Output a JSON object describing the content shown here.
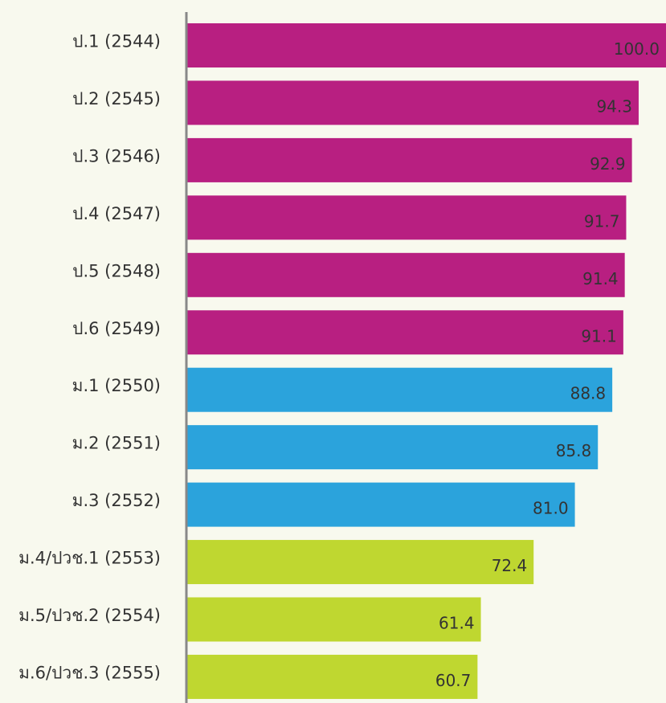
{
  "chart_data": {
    "type": "bar",
    "orientation": "horizontal",
    "categories": [
      "ป.1 (2544)",
      "ป.2 (2545)",
      "ป.3 (2546)",
      "ป.4 (2547)",
      "ป.5 (2548)",
      "ป.6 (2549)",
      "ม.1 (2550)",
      "ม.2 (2551)",
      "ม.3 (2552)",
      "ม.4/ปวช.1 (2553)",
      "ม.5/ปวช.2 (2554)",
      "ม.6/ปวช.3 (2555)"
    ],
    "values": [
      100,
      94.3,
      92.9,
      91.7,
      91.4,
      91.1,
      88.8,
      85.8,
      81,
      72.4,
      61.4,
      60.7
    ],
    "value_labels": [
      "100.0",
      "94.3",
      "92.9",
      "91.7",
      "91.4",
      "91.1",
      "88.8",
      "85.8",
      "81.0",
      "72.4",
      "61.4",
      "60.7"
    ],
    "colors": [
      "#b81f81",
      "#b81f81",
      "#b81f81",
      "#b81f81",
      "#b81f81",
      "#b81f81",
      "#2ba3dc",
      "#2ba3dc",
      "#2ba3dc",
      "#bfd730",
      "#bfd730",
      "#bfd730"
    ],
    "xlim": [
      0,
      100
    ]
  }
}
